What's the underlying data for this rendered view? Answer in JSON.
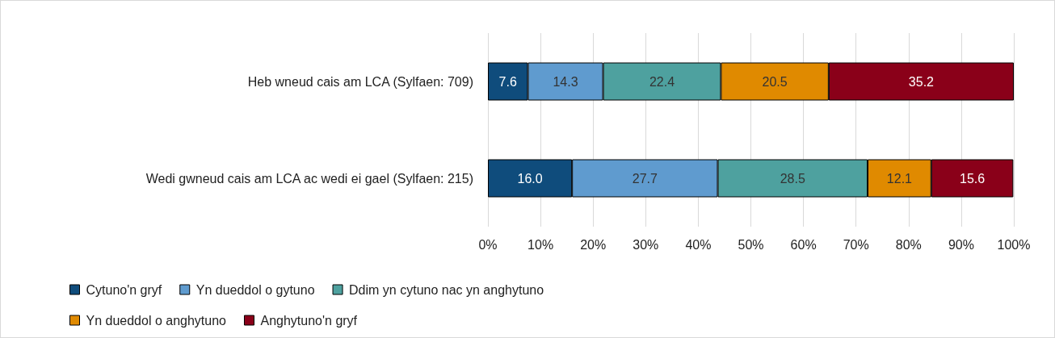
{
  "chart_data": {
    "type": "bar",
    "orientation": "horizontal",
    "stacked": true,
    "categories": [
      "Heb wneud cais am LCA (Sylfaen: 709)",
      "Wedi gwneud cais am LCA ac wedi ei gael (Sylfaen: 215)"
    ],
    "series": [
      {
        "name": "Cytuno'n gryf",
        "color": "#0f4c7c",
        "values": [
          7.6,
          16.0
        ],
        "value_labels": [
          "7.6",
          "16.0"
        ]
      },
      {
        "name": "Yn dueddol o gytuno",
        "color": "#5f9bcf",
        "values": [
          14.3,
          27.7
        ],
        "value_labels": [
          "14.3",
          "27.7"
        ]
      },
      {
        "name": "Ddim yn cytuno nac yn anghytuno",
        "color": "#4ea19f",
        "values": [
          22.4,
          28.5
        ],
        "value_labels": [
          "22.4",
          "28.5"
        ]
      },
      {
        "name": "Yn dueddol o anghytuno",
        "color": "#e08a00",
        "values": [
          20.5,
          12.1
        ],
        "value_labels": [
          "20.5",
          "12.1"
        ]
      },
      {
        "name": "Anghytuno'n gryf",
        "color": "#8a0019",
        "values": [
          35.2,
          15.6
        ],
        "value_labels": [
          "35.2",
          "15.6"
        ]
      }
    ],
    "xlim": [
      0,
      100
    ],
    "xticks": [
      {
        "value": 0,
        "label": "0%"
      },
      {
        "value": 10,
        "label": "10%"
      },
      {
        "value": 20,
        "label": "20%"
      },
      {
        "value": 30,
        "label": "30%"
      },
      {
        "value": 40,
        "label": "40%"
      },
      {
        "value": 50,
        "label": "50%"
      },
      {
        "value": 60,
        "label": "60%"
      },
      {
        "value": 70,
        "label": "70%"
      },
      {
        "value": 80,
        "label": "80%"
      },
      {
        "value": 90,
        "label": "90%"
      },
      {
        "value": 100,
        "label": "100%"
      }
    ],
    "grid": "x",
    "legend": "bottom"
  }
}
